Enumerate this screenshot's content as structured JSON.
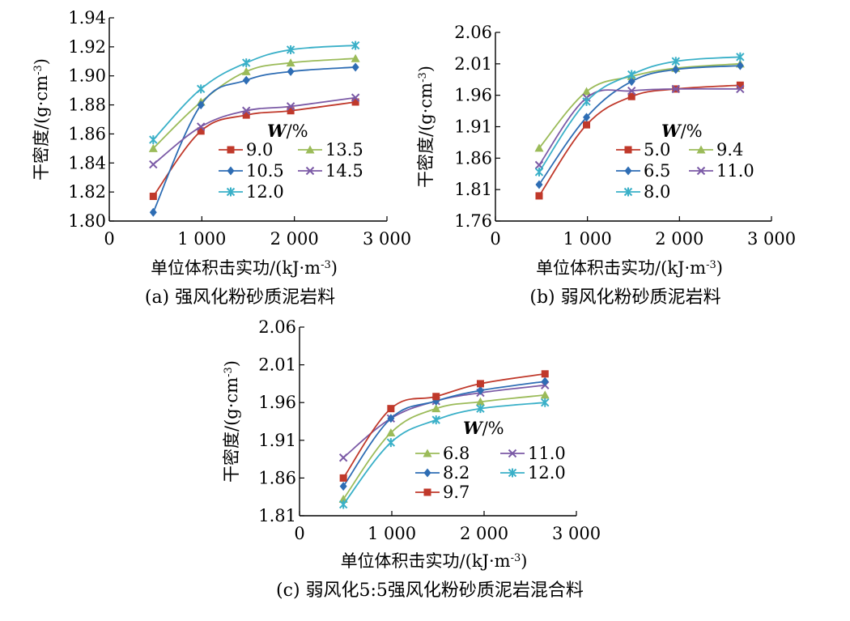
{
  "chart_data": [
    {
      "type": "line",
      "caption": "(a) 强风化粉砂质泥岩料",
      "xlabel": "单位体积击实功/(kJ·m⁻³)",
      "ylabel": "干密度/(g·cm⁻³)",
      "xlim": [
        0,
        3000
      ],
      "ylim": [
        1.8,
        1.94
      ],
      "xticks": [
        0,
        1000,
        2000,
        3000
      ],
      "xtick_labels": [
        "0",
        "1 000",
        "2 000",
        "3 000"
      ],
      "yticks": [
        1.8,
        1.82,
        1.84,
        1.86,
        1.88,
        1.9,
        1.92,
        1.94
      ],
      "ytick_labels": [
        "1.80",
        "1.82",
        "1.84",
        "1.86",
        "1.88",
        "1.90",
        "1.92",
        "1.94"
      ],
      "legend_title": "W/%",
      "x": [
        475,
        990,
        1480,
        1960,
        2660
      ],
      "series": [
        {
          "name": "9.0",
          "color": "#c0392b",
          "marker": "square",
          "values": [
            1.817,
            1.862,
            1.873,
            1.876,
            1.882
          ]
        },
        {
          "name": "13.5",
          "color": "#9bbb59",
          "marker": "triangle",
          "values": [
            1.85,
            1.882,
            1.903,
            1.909,
            1.912
          ]
        },
        {
          "name": "10.5",
          "color": "#2e6db4",
          "marker": "diamond",
          "values": [
            1.806,
            1.88,
            1.897,
            1.903,
            1.906
          ]
        },
        {
          "name": "14.5",
          "color": "#7b5aa6",
          "marker": "x",
          "values": [
            1.839,
            1.865,
            1.876,
            1.879,
            1.885
          ]
        },
        {
          "name": "12.0",
          "color": "#3ab0c8",
          "marker": "star",
          "values": [
            1.856,
            1.891,
            1.909,
            1.918,
            1.921
          ]
        }
      ]
    },
    {
      "type": "line",
      "caption": "(b) 弱风化粉砂质泥岩料",
      "xlabel": "单位体积击实功/(kJ·m⁻³)",
      "ylabel": "干密度/(g·cm⁻³)",
      "xlim": [
        0,
        3000
      ],
      "ylim": [
        1.76,
        2.06
      ],
      "xticks": [
        0,
        1000,
        2000,
        3000
      ],
      "xtick_labels": [
        "0",
        "1 000",
        "2 000",
        "3 000"
      ],
      "yticks": [
        1.76,
        1.81,
        1.86,
        1.91,
        1.96,
        2.01,
        2.06
      ],
      "ytick_labels": [
        "1.76",
        "1.81",
        "1.86",
        "1.91",
        "1.96",
        "2.01",
        "2.06"
      ],
      "legend_title": "W/%",
      "x": [
        475,
        990,
        1480,
        1960,
        2660
      ],
      "series": [
        {
          "name": "5.0",
          "color": "#c0392b",
          "marker": "square",
          "values": [
            1.8,
            1.913,
            1.958,
            1.97,
            1.976
          ]
        },
        {
          "name": "9.4",
          "color": "#9bbb59",
          "marker": "triangle",
          "values": [
            1.876,
            1.966,
            1.99,
            2.003,
            2.01
          ]
        },
        {
          "name": "6.5",
          "color": "#2e6db4",
          "marker": "diamond",
          "values": [
            1.818,
            1.925,
            1.982,
            2.001,
            2.007
          ]
        },
        {
          "name": "11.0",
          "color": "#7b5aa6",
          "marker": "x",
          "values": [
            1.849,
            1.956,
            1.967,
            1.97,
            1.97
          ]
        },
        {
          "name": "8.0",
          "color": "#3ab0c8",
          "marker": "star",
          "values": [
            1.838,
            1.95,
            1.993,
            2.014,
            2.021
          ]
        }
      ]
    },
    {
      "type": "line",
      "caption": "(c) 弱风化5:5强风化粉砂质泥岩混合料",
      "xlabel": "单位体积击实功/(kJ·m⁻³)",
      "ylabel": "干密度/(g·cm⁻³)",
      "xlim": [
        0,
        3000
      ],
      "ylim": [
        1.81,
        2.06
      ],
      "xticks": [
        0,
        1000,
        2000,
        3000
      ],
      "xtick_labels": [
        "0",
        "1 000",
        "2 000",
        "3 000"
      ],
      "yticks": [
        1.81,
        1.86,
        1.91,
        1.96,
        2.01,
        2.06
      ],
      "ytick_labels": [
        "1.81",
        "1.86",
        "1.91",
        "1.96",
        "2.01",
        "2.06"
      ],
      "legend_title": "W/%",
      "x": [
        475,
        990,
        1480,
        1960,
        2660
      ],
      "series": [
        {
          "name": "6.8",
          "color": "#9bbb59",
          "marker": "triangle",
          "values": [
            1.832,
            1.92,
            1.952,
            1.961,
            1.97
          ]
        },
        {
          "name": "11.0",
          "color": "#7b5aa6",
          "marker": "x",
          "values": [
            1.887,
            1.939,
            1.962,
            1.973,
            1.983
          ]
        },
        {
          "name": "8.2",
          "color": "#2e6db4",
          "marker": "diamond",
          "values": [
            1.849,
            1.939,
            1.962,
            1.976,
            1.988
          ]
        },
        {
          "name": "12.0",
          "color": "#3ab0c8",
          "marker": "star",
          "values": [
            1.825,
            1.907,
            1.937,
            1.952,
            1.96
          ]
        },
        {
          "name": "9.7",
          "color": "#c0392b",
          "marker": "square",
          "values": [
            1.86,
            1.952,
            1.968,
            1.985,
            1.998
          ]
        }
      ]
    }
  ]
}
